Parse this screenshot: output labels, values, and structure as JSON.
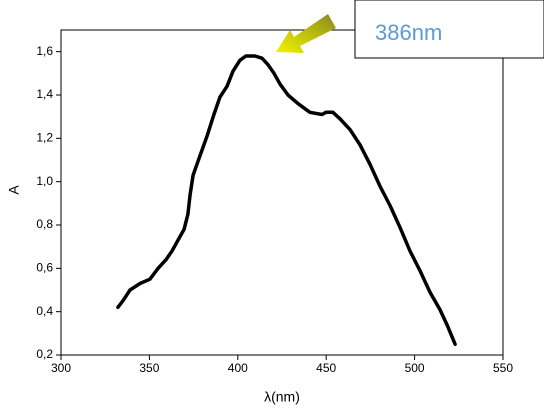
{
  "chart_data": {
    "type": "line",
    "xlabel": "λ(nm)",
    "ylabel": "A",
    "annotation": "386nm",
    "color": "#000000",
    "x": [
      332.2,
      335.0,
      339.0,
      344.7,
      350.3,
      354.9,
      359.4,
      362.8,
      366.2,
      369.6,
      371.8,
      373.0,
      374.7,
      378.6,
      382.6,
      386.5,
      389.9,
      393.9,
      397.3,
      401.2,
      404.6,
      409.7,
      413.7,
      417.1,
      420.5,
      423.9,
      428.4,
      434.1,
      440.8,
      447.6,
      449.9,
      453.8,
      457.8,
      463.5,
      469.1,
      474.8,
      480.4,
      486.1,
      491.7,
      497.4,
      503.0,
      508.7,
      514.3,
      518.3,
      522.9
    ],
    "values": [
      0.42,
      0.45,
      0.5,
      0.53,
      0.55,
      0.6,
      0.64,
      0.68,
      0.73,
      0.78,
      0.85,
      0.94,
      1.03,
      1.12,
      1.21,
      1.31,
      1.39,
      1.44,
      1.51,
      1.56,
      1.58,
      1.58,
      1.57,
      1.54,
      1.5,
      1.45,
      1.4,
      1.36,
      1.32,
      1.31,
      1.32,
      1.32,
      1.29,
      1.24,
      1.17,
      1.08,
      0.98,
      0.89,
      0.79,
      0.68,
      0.59,
      0.49,
      0.41,
      0.34,
      0.25
    ],
    "xlim": [
      300,
      550
    ],
    "xticks": [
      300,
      350,
      400,
      450,
      500,
      550
    ],
    "ylim": [
      0.2,
      1.7
    ],
    "yticks": [
      {
        "value": 0.2,
        "label": "0,2"
      },
      {
        "value": 0.4,
        "label": "0,4"
      },
      {
        "value": 0.6,
        "label": "0,6"
      },
      {
        "value": 0.8,
        "label": "0,8"
      },
      {
        "value": 1.0,
        "label": "1,0"
      },
      {
        "value": 1.2,
        "label": "1,2"
      },
      {
        "value": 1.4,
        "label": "1,4"
      },
      {
        "value": 1.6,
        "label": "1,6"
      }
    ]
  }
}
